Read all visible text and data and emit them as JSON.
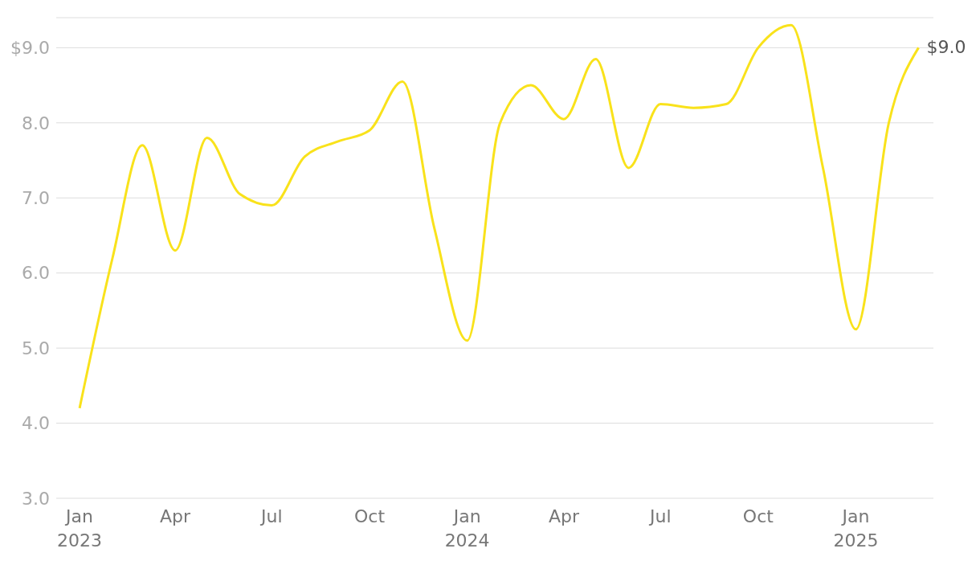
{
  "chart_data": {
    "type": "line",
    "x": [
      "2023-01",
      "2023-02",
      "2023-03",
      "2023-04",
      "2023-05",
      "2023-06",
      "2023-07",
      "2023-08",
      "2023-09",
      "2023-10",
      "2023-11",
      "2023-12",
      "2024-01",
      "2024-02",
      "2024-03",
      "2024-04",
      "2024-05",
      "2024-06",
      "2024-07",
      "2024-08",
      "2024-09",
      "2024-10",
      "2024-11",
      "2024-12",
      "2025-01",
      "2025-02",
      "2025-03"
    ],
    "series": [
      {
        "color": "#f9e21b",
        "values": [
          4.2,
          6.2,
          7.7,
          6.3,
          7.8,
          7.05,
          6.9,
          7.55,
          7.75,
          7.9,
          8.55,
          6.6,
          5.1,
          8.0,
          8.5,
          8.05,
          8.85,
          7.4,
          8.25,
          8.2,
          8.25,
          9.0,
          9.3,
          7.4,
          5.25,
          8.0,
          9.0
        ]
      }
    ],
    "ylim": [
      3,
      9.4
    ],
    "yticks": [
      {
        "value": 3,
        "label": "3.0"
      },
      {
        "value": 4,
        "label": "4.0"
      },
      {
        "value": 5,
        "label": "5.0"
      },
      {
        "value": 6,
        "label": "6.0"
      },
      {
        "value": 7,
        "label": "7.0"
      },
      {
        "value": 8,
        "label": "8.0"
      },
      {
        "value": 9,
        "label": "$9.0"
      }
    ],
    "xlim": [
      "2022-12-10",
      "2025-03-15"
    ],
    "xticks": [
      {
        "value": "2023-01",
        "label": "Jan\n2023"
      },
      {
        "value": "2023-04",
        "label": "Apr"
      },
      {
        "value": "2023-07",
        "label": "Jul"
      },
      {
        "value": "2023-10",
        "label": "Oct"
      },
      {
        "value": "2024-01",
        "label": "Jan\n2024"
      },
      {
        "value": "2024-04",
        "label": "Apr"
      },
      {
        "value": "2024-07",
        "label": "Jul"
      },
      {
        "value": "2024-10",
        "label": "Oct"
      },
      {
        "value": "2025-01",
        "label": "Jan\n2025"
      }
    ],
    "annotations": [
      {
        "text": "$9.0",
        "x": "2025-03",
        "y": 9.0
      }
    ],
    "grid": "y",
    "marker": "none"
  }
}
